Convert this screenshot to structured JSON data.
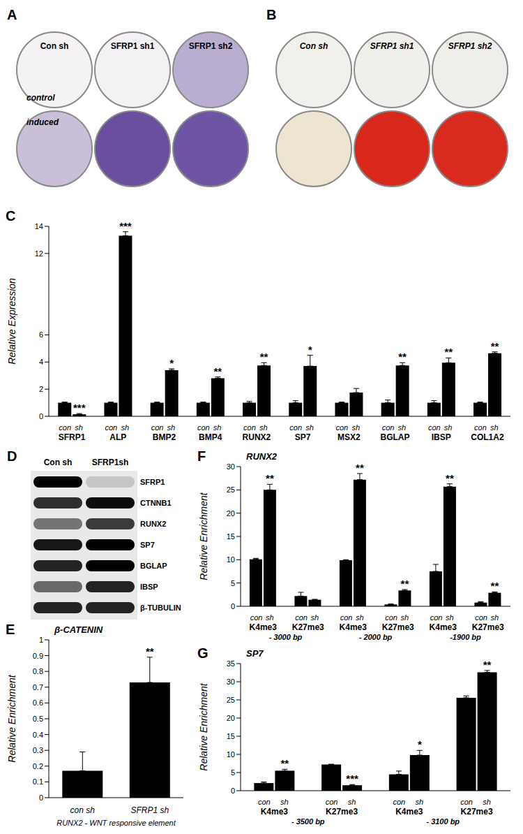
{
  "images": [
    {
      "panel": "A",
      "columns": [
        "Con sh",
        "SFRP1 sh1",
        "SFRP1 sh2"
      ],
      "rows": [
        "control",
        "induced"
      ],
      "colors": [
        [
          "#f4f2f5",
          "#f3f1f4",
          "#b9aed0"
        ],
        [
          "#c9bfd9",
          "#6a4f9e",
          "#6e55a3"
        ]
      ]
    },
    {
      "panel": "B",
      "columns": [
        "Con sh",
        "SFRP1 sh1",
        "SFRP1 sh2"
      ],
      "colors": [
        [
          "#f2f0ec",
          "#f1efeb",
          "#f0eeea"
        ],
        [
          "#ede4d2",
          "#d8281c",
          "#d92a1f"
        ]
      ]
    }
  ],
  "blot": {
    "panel": "D",
    "columns": [
      "Con sh",
      "SFRP1sh"
    ],
    "rows": [
      {
        "name": "SFRP1",
        "intensity": [
          1,
          0.15
        ]
      },
      {
        "name": "CTNNB1",
        "intensity": [
          0.8,
          0.95
        ]
      },
      {
        "name": "RUNX2",
        "intensity": [
          0.5,
          0.75
        ]
      },
      {
        "name": "SP7",
        "intensity": [
          0.9,
          1
        ]
      },
      {
        "name": "BGLAP",
        "intensity": [
          0.85,
          1
        ]
      },
      {
        "name": "IBSP",
        "intensity": [
          0.55,
          0.85
        ]
      },
      {
        "name": "β-TUBULIN",
        "intensity": [
          0.85,
          0.85
        ]
      }
    ]
  },
  "chart_data": [
    {
      "panel": "C",
      "type": "bar",
      "ylabel": "Relative Expression",
      "categories": [
        "SFRP1",
        "ALP",
        "BMP2",
        "BMP4",
        "RUNX2",
        "SP7",
        "MSX2",
        "BGLAP",
        "IBSP",
        "COL1A2"
      ],
      "series": [
        {
          "name": "con",
          "color": "#000000",
          "values": [
            1,
            1,
            1,
            1,
            1,
            1,
            1,
            1,
            1,
            1
          ],
          "errors": [
            0.05,
            0.05,
            0.05,
            0.05,
            0.1,
            0.15,
            0.05,
            0.2,
            0.15,
            0.05
          ]
        },
        {
          "name": "sh",
          "color": "#000000",
          "values": [
            0.15,
            13.3,
            3.4,
            2.8,
            3.75,
            3.7,
            1.75,
            3.75,
            3.95,
            4.65
          ],
          "errors": [
            0.05,
            0.3,
            0.1,
            0.1,
            0.2,
            0.8,
            0.3,
            0.2,
            0.35,
            0.1
          ],
          "annotations": [
            "***",
            "***",
            "*",
            "**",
            "**",
            "*",
            null,
            "**",
            "**",
            "**"
          ]
        }
      ],
      "ylim": [
        0,
        14
      ],
      "yticks": [
        0,
        2,
        4,
        6,
        12,
        14
      ],
      "grid": false
    },
    {
      "panel": "E",
      "type": "bar",
      "title": "β-CATENIN",
      "ylabel": "Relative Enrichment",
      "xlabel": "RUNX2 - WNT responsive element",
      "categories": [
        "con sh",
        "SFRP1 sh"
      ],
      "values": [
        0.17,
        0.73
      ],
      "errors": [
        0.12,
        0.16
      ],
      "annotations": [
        null,
        "**"
      ],
      "color": "#000000",
      "ylim": [
        0,
        1
      ],
      "yticks": [
        0,
        0.1,
        0.2,
        0.3,
        0.4,
        0.5,
        0.6,
        0.7,
        0.8,
        0.9,
        1
      ],
      "grid": false
    },
    {
      "panel": "F",
      "type": "bar",
      "title": "RUNX2",
      "ylabel": "Relative Enrichment",
      "groups": [
        "- 3000 bp",
        "- 2000 bp",
        "-1900 bp"
      ],
      "categories": [
        "K4me3",
        "K27me3",
        "K4me3",
        "K27me3",
        "K4me3",
        "K27me3"
      ],
      "series": [
        {
          "name": "con",
          "color": "#000000",
          "values": [
            10.1,
            2.2,
            9.9,
            0.4,
            7.5,
            0.8
          ],
          "errors": [
            0.2,
            0.8,
            0.1,
            0.1,
            1.5,
            0.2
          ]
        },
        {
          "name": "sh",
          "color": "#000000",
          "values": [
            25,
            1.4,
            27.2,
            3.4,
            25.7,
            2.9
          ],
          "errors": [
            1.2,
            0.1,
            1.3,
            0.2,
            0.6,
            0.2
          ],
          "annotations": [
            "**",
            null,
            "**",
            "**",
            "**",
            "**"
          ]
        }
      ],
      "ylim": [
        0,
        30
      ],
      "yticks": [
        0,
        5,
        10,
        15,
        20,
        25,
        30
      ],
      "grid": false
    },
    {
      "panel": "G",
      "type": "bar",
      "title": "SP7",
      "ylabel": "Relative Enrichment",
      "groups": [
        "- 3500 bp",
        "- 3100 bp"
      ],
      "categories": [
        "K4me3",
        "K27me3",
        "K4me3",
        "K27me3"
      ],
      "series": [
        {
          "name": "con",
          "color": "#000000",
          "values": [
            2.1,
            7.2,
            4.5,
            25.6
          ],
          "errors": [
            0.3,
            0.1,
            0.9,
            0.5
          ]
        },
        {
          "name": "sh",
          "color": "#000000",
          "values": [
            5.5,
            1.5,
            9.8,
            32.6
          ],
          "errors": [
            0.4,
            0.2,
            1.3,
            0.5
          ],
          "annotations": [
            "**",
            "***",
            "*",
            "**"
          ]
        }
      ],
      "ylim": [
        0,
        35
      ],
      "yticks": [
        0,
        5,
        10,
        15,
        20,
        25,
        30,
        35
      ],
      "grid": false
    }
  ]
}
